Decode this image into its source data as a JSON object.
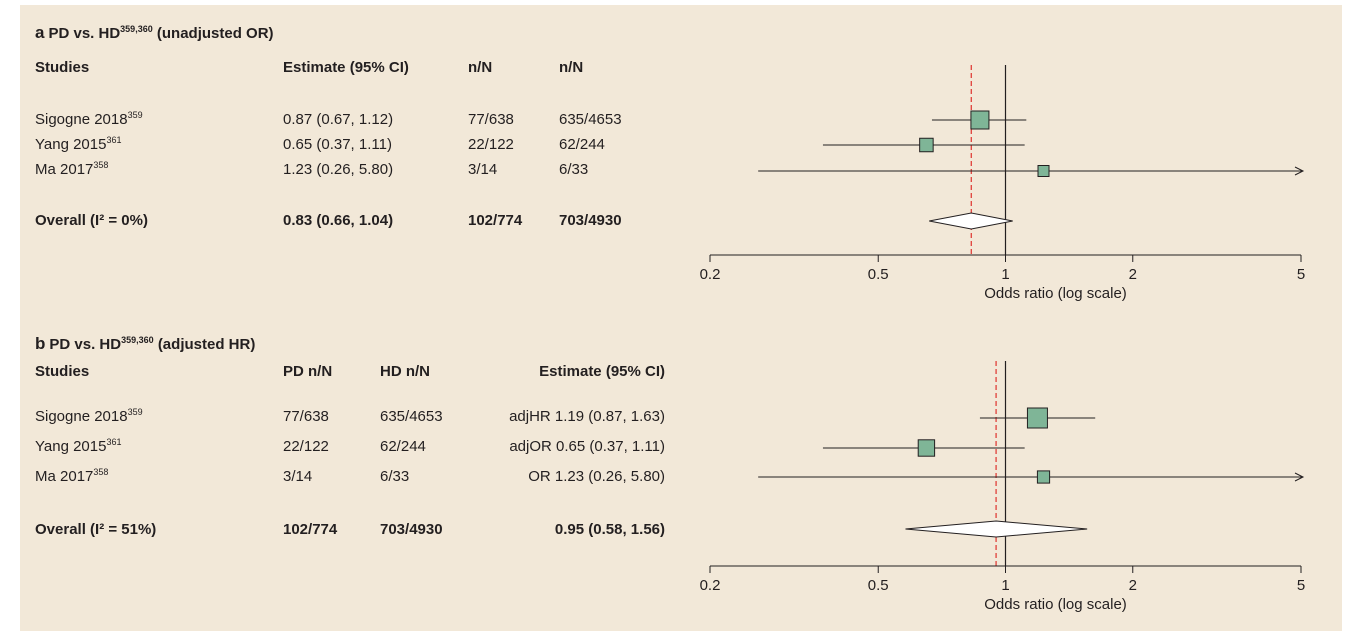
{
  "chart_data": [
    {
      "type": "forest",
      "panel_letter": "a",
      "title": "PD vs. HD",
      "title_sup": "359,360",
      "title_suffix": "(unadjusted OR)",
      "columns": [
        "Studies",
        "Estimate (95% CI)",
        "n/N",
        "n/N"
      ],
      "rows": [
        {
          "study": "Sigogne 2018",
          "ref": "359",
          "estimate_text": "0.87 (0.67, 1.12)",
          "n1": "77/638",
          "n2": "635/4653",
          "est": 0.87,
          "lo": 0.67,
          "hi": 1.12,
          "weight": 1.0
        },
        {
          "study": "Yang 2015",
          "ref": "361",
          "estimate_text": "0.65 (0.37, 1.11)",
          "n1": "22/122",
          "n2": "62/244",
          "est": 0.65,
          "lo": 0.37,
          "hi": 1.11,
          "weight": 0.55
        },
        {
          "study": "Ma 2017",
          "ref": "358",
          "estimate_text": "1.23 (0.26, 5.80)",
          "n1": "3/14",
          "n2": "6/33",
          "est": 1.23,
          "lo": 0.26,
          "hi": 5.8,
          "weight": 0.3
        }
      ],
      "overall": {
        "label": "Overall (I² = 0%)",
        "estimate_text": "0.83 (0.66, 1.04)",
        "n1": "102/774",
        "n2": "703/4930",
        "est": 0.83,
        "lo": 0.66,
        "hi": 1.04
      },
      "xaxis": {
        "label": "Odds ratio (log scale)",
        "scale": "log",
        "ticks": [
          0.2,
          0.5,
          1,
          2,
          5
        ],
        "tick_labels": [
          "0.2",
          "0.5",
          "1",
          "2",
          "5"
        ],
        "xlim": [
          0.2,
          5
        ]
      },
      "reference_line": 1,
      "pooled_line_color": "#e0403a",
      "marker_color": "#7fb597"
    },
    {
      "type": "forest",
      "panel_letter": "b",
      "title": "PD vs. HD",
      "title_sup": "359,360",
      "title_suffix": "(adjusted HR)",
      "columns": [
        "Studies",
        "PD n/N",
        "HD n/N",
        "Estimate (95% CI)"
      ],
      "rows": [
        {
          "study": "Sigogne 2018",
          "ref": "359",
          "n1": "77/638",
          "n2": "635/4653",
          "estimate_text": "adjHR 1.19 (0.87, 1.63)",
          "est": 1.19,
          "lo": 0.87,
          "hi": 1.63,
          "weight": 1.0
        },
        {
          "study": "Yang 2015",
          "ref": "361",
          "n1": "22/122",
          "n2": "62/244",
          "estimate_text": "adjOR 0.65 (0.37, 1.11)",
          "est": 0.65,
          "lo": 0.37,
          "hi": 1.11,
          "weight": 0.7
        },
        {
          "study": "Ma 2017",
          "ref": "358",
          "n1": "3/14",
          "n2": "6/33",
          "estimate_text": "OR 1.23 (0.26, 5.80)",
          "est": 1.23,
          "lo": 0.26,
          "hi": 5.8,
          "weight": 0.35
        }
      ],
      "overall": {
        "label": "Overall (I² = 51%)",
        "n1": "102/774",
        "n2": "703/4930",
        "estimate_text": "0.95 (0.58, 1.56)",
        "est": 0.95,
        "lo": 0.58,
        "hi": 1.56
      },
      "xaxis": {
        "label": "Odds ratio (log scale)",
        "scale": "log",
        "ticks": [
          0.2,
          0.5,
          1,
          2,
          5
        ],
        "tick_labels": [
          "0.2",
          "0.5",
          "1",
          "2",
          "5"
        ],
        "xlim": [
          0.2,
          5
        ]
      },
      "reference_line": 1,
      "pooled_line_color": "#e0403a",
      "marker_color": "#7fb597"
    }
  ]
}
